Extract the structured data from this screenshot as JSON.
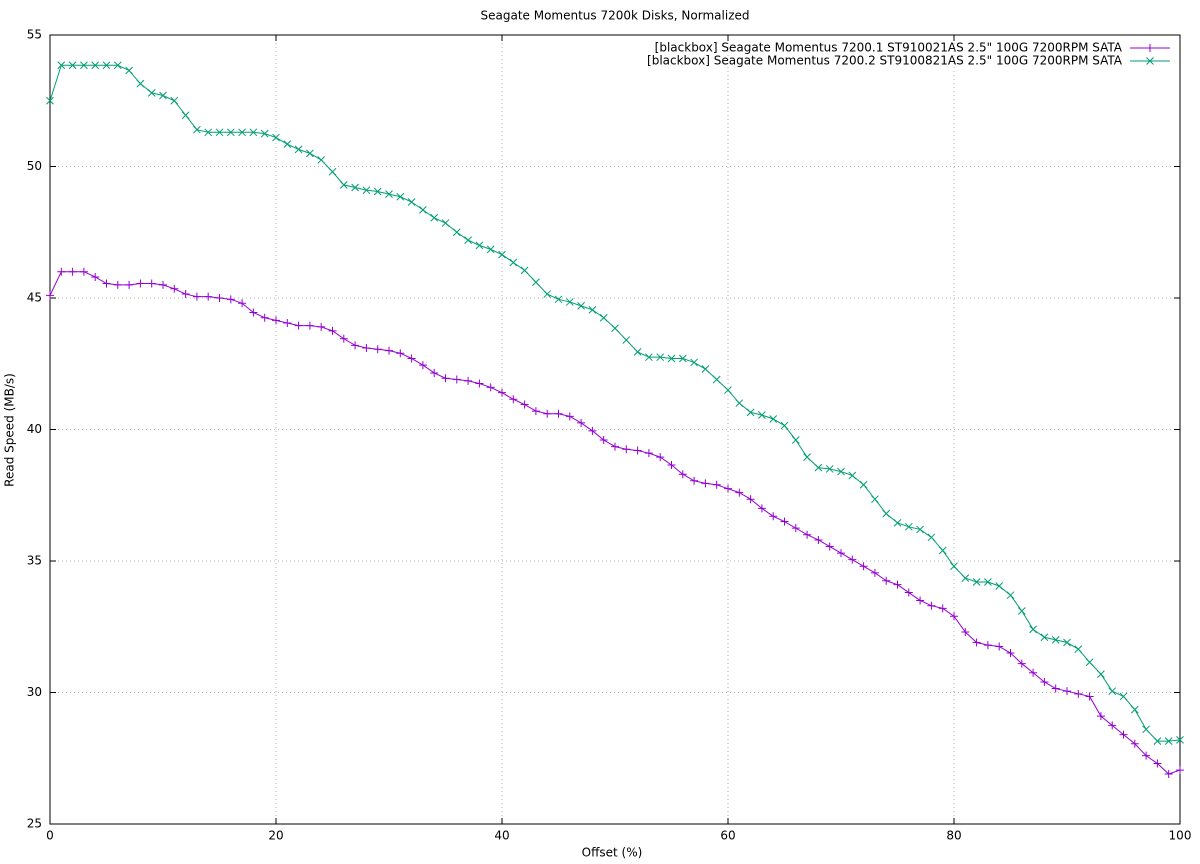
{
  "chart_data": {
    "type": "line",
    "title": "Seagate Momentus 7200k Disks, Normalized",
    "x_label": "Offset (%)",
    "y_label": "Read Speed (MB/s)",
    "x": [
      0,
      1,
      2,
      3,
      4,
      5,
      6,
      7,
      8,
      9,
      10,
      11,
      12,
      13,
      14,
      15,
      16,
      17,
      18,
      19,
      20,
      21,
      22,
      23,
      24,
      25,
      26,
      27,
      28,
      29,
      30,
      31,
      32,
      33,
      34,
      35,
      36,
      37,
      38,
      39,
      40,
      41,
      42,
      43,
      44,
      45,
      46,
      47,
      48,
      49,
      50,
      51,
      52,
      53,
      54,
      55,
      56,
      57,
      58,
      59,
      60,
      61,
      62,
      63,
      64,
      65,
      66,
      67,
      68,
      69,
      70,
      71,
      72,
      73,
      74,
      75,
      76,
      77,
      78,
      79,
      80,
      81,
      82,
      83,
      84,
      85,
      86,
      87,
      88,
      89,
      90,
      91,
      92,
      93,
      94,
      95,
      96,
      97,
      98,
      99,
      100
    ],
    "series": [
      {
        "name": "[blackbox] Seagate Momentus 7200.1 ST910021AS 2.5\" 100G 7200RPM SATA",
        "color": "#9400d3",
        "marker": "plus",
        "values": [
          45.1,
          46.0,
          46.0,
          46.0,
          45.8,
          45.55,
          45.5,
          45.5,
          45.55,
          45.55,
          45.5,
          45.35,
          45.15,
          45.05,
          45.05,
          45.0,
          44.95,
          44.8,
          44.45,
          44.25,
          44.15,
          44.05,
          43.95,
          43.95,
          43.9,
          43.75,
          43.45,
          43.2,
          43.1,
          43.05,
          43.0,
          42.9,
          42.7,
          42.45,
          42.15,
          41.95,
          41.9,
          41.85,
          41.75,
          41.6,
          41.4,
          41.15,
          40.95,
          40.7,
          40.6,
          40.6,
          40.5,
          40.25,
          39.95,
          39.6,
          39.35,
          39.25,
          39.2,
          39.1,
          38.95,
          38.65,
          38.3,
          38.05,
          37.95,
          37.9,
          37.75,
          37.6,
          37.35,
          37.0,
          36.7,
          36.5,
          36.25,
          36.0,
          35.8,
          35.55,
          35.3,
          35.05,
          34.8,
          34.55,
          34.25,
          34.1,
          33.8,
          33.5,
          33.3,
          33.2,
          32.9,
          32.3,
          31.9,
          31.8,
          31.75,
          31.5,
          31.1,
          30.75,
          30.4,
          30.15,
          30.05,
          29.95,
          29.85,
          29.1,
          28.75,
          28.4,
          28.05,
          27.6,
          27.3,
          26.9,
          27.05
        ]
      },
      {
        "name": "[blackbox] Seagate Momentus 7200.2 ST9100821AS 2.5\" 100G 7200RPM SATA",
        "color": "#009e73",
        "marker": "cross",
        "values": [
          52.5,
          53.85,
          53.85,
          53.85,
          53.85,
          53.85,
          53.85,
          53.65,
          53.15,
          52.8,
          52.7,
          52.5,
          51.95,
          51.4,
          51.3,
          51.3,
          51.3,
          51.3,
          51.3,
          51.25,
          51.1,
          50.85,
          50.65,
          50.5,
          50.25,
          49.8,
          49.3,
          49.2,
          49.1,
          49.05,
          48.95,
          48.85,
          48.65,
          48.35,
          48.05,
          47.85,
          47.5,
          47.2,
          47.0,
          46.85,
          46.65,
          46.35,
          46.05,
          45.6,
          45.15,
          44.95,
          44.85,
          44.7,
          44.55,
          44.25,
          43.85,
          43.4,
          42.95,
          42.75,
          42.75,
          42.7,
          42.7,
          42.55,
          42.3,
          41.9,
          41.5,
          41.0,
          40.65,
          40.55,
          40.4,
          40.15,
          39.6,
          38.95,
          38.55,
          38.5,
          38.4,
          38.25,
          37.9,
          37.35,
          36.8,
          36.45,
          36.3,
          36.2,
          35.9,
          35.4,
          34.8,
          34.35,
          34.2,
          34.2,
          34.05,
          33.7,
          33.1,
          32.4,
          32.1,
          32.0,
          31.9,
          31.65,
          31.15,
          30.7,
          30.05,
          29.85,
          29.35,
          28.6,
          28.15,
          28.15,
          28.2
        ]
      }
    ],
    "xlim": [
      0,
      100
    ],
    "xticks": [
      0,
      20,
      40,
      60,
      80,
      100
    ],
    "ylim": [
      25,
      55
    ],
    "yticks": [
      25,
      30,
      35,
      40,
      45,
      50,
      55
    ],
    "grid": true,
    "legend": "top-right"
  }
}
